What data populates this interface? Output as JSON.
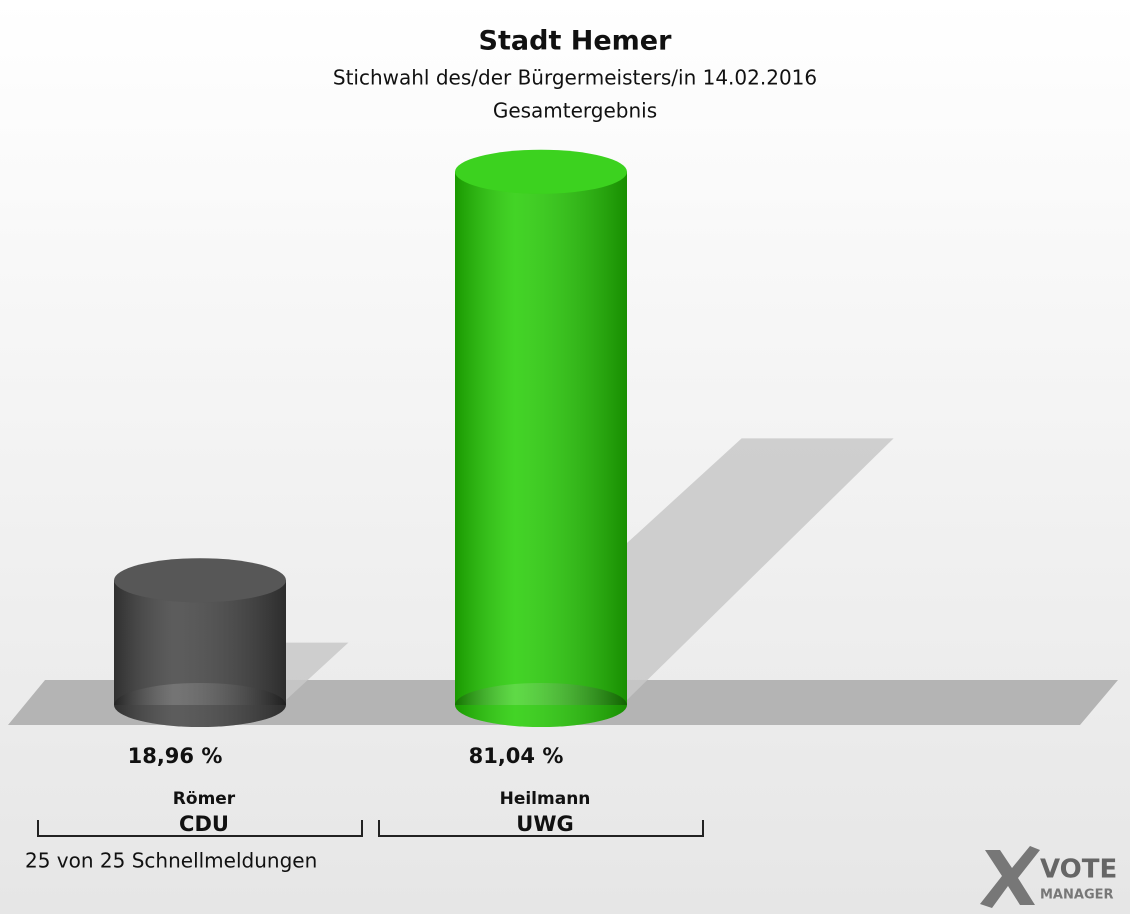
{
  "chart_data": {
    "type": "cylinder-bar",
    "title": "Stadt Hemer",
    "subtitle": "Stichwahl des/der Bürgermeisters/in 14.02.2016",
    "subtitle2": "Gesamtergebnis",
    "categories": [
      "Römer",
      "Heilmann"
    ],
    "parties": [
      "CDU",
      "UWG"
    ],
    "values": [
      18.96,
      81.04
    ],
    "value_labels": [
      "18,96 %",
      "81,04 %"
    ],
    "colors": [
      "#404040",
      "#22cc00"
    ],
    "footer": "25 von 25 Schnellmeldungen",
    "logo": [
      "VOTE",
      "MANAGER"
    ]
  }
}
